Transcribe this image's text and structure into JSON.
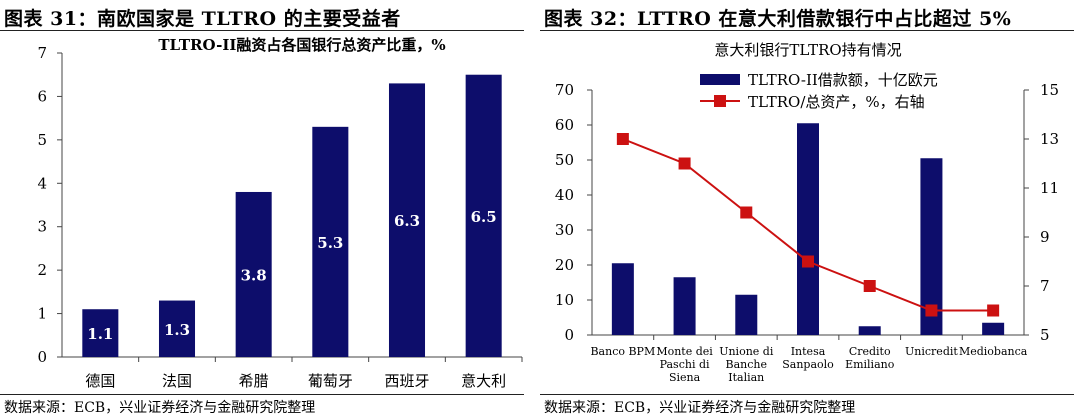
{
  "left": {
    "figure_title": "图表 31：南欧国家是 TLTRO 的主要受益者",
    "source": "数据来源：ECB，兴业证券经济与金融研究院整理",
    "colors": {
      "bar": "#0d0d6b",
      "label": "#ffffff"
    }
  },
  "right": {
    "figure_title": "图表 32：LTTRO 在意大利借款银行中占比超过 5%",
    "source": "数据来源：ECB，兴业证券经济与金融研究院整理",
    "colors": {
      "bar": "#0d0d6b",
      "line": "#cc1111"
    }
  },
  "chart_data": [
    {
      "type": "bar",
      "title": "TLTRO-II融资占各国银行总资产比重，%",
      "categories": [
        "德国",
        "法国",
        "希腊",
        "葡萄牙",
        "西班牙",
        "意大利"
      ],
      "values": [
        1.1,
        1.3,
        3.8,
        5.3,
        6.3,
        6.5
      ],
      "data_labels": [
        "1.1",
        "1.3",
        "3.8",
        "5.3",
        "6.3",
        "6.5"
      ],
      "ylim": [
        0,
        7
      ],
      "yticks": [
        0,
        1,
        2,
        3,
        4,
        5,
        6,
        7
      ],
      "xlabel": "",
      "ylabel": "",
      "grid": false
    },
    {
      "type": "bar+line",
      "title": "意大利银行TLTRO持有情况",
      "categories": [
        [
          "Banco BPM"
        ],
        [
          "Monte dei",
          "Paschi di",
          "Siena"
        ],
        [
          "Unione di",
          "Banche",
          "Italian"
        ],
        [
          "Intesa",
          "Sanpaolo"
        ],
        [
          "Credito",
          "Emiliano"
        ],
        [
          "Unicredit"
        ],
        [
          "Mediobanca"
        ]
      ],
      "series": [
        {
          "name": "TLTRO-II借款额，十亿欧元",
          "type": "bar",
          "axis": "left",
          "values": [
            20.5,
            16.5,
            11.5,
            60.5,
            2.5,
            50.5,
            3.5
          ]
        },
        {
          "name": "TLTRO/总资产，%，右轴",
          "type": "line",
          "axis": "right",
          "values": [
            13,
            12,
            10,
            8,
            7,
            6,
            6
          ]
        }
      ],
      "ylim_left": [
        0,
        70
      ],
      "yticks_left": [
        0,
        10,
        20,
        30,
        40,
        50,
        60,
        70
      ],
      "ylim_right": [
        5,
        15
      ],
      "yticks_right": [
        5,
        7,
        9,
        11,
        13,
        15
      ],
      "legend": "top",
      "grid": false
    }
  ]
}
